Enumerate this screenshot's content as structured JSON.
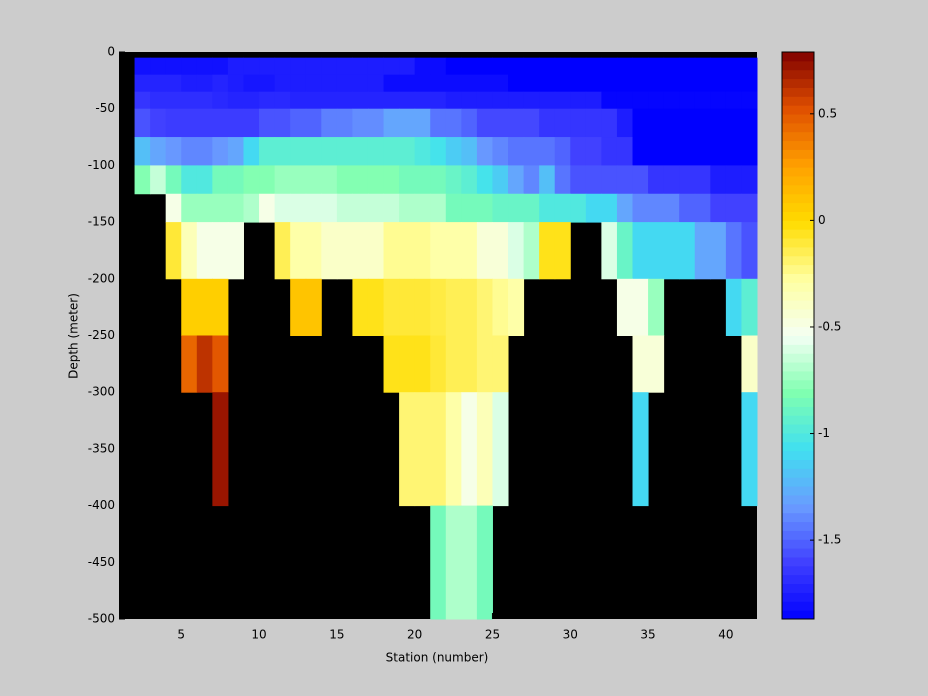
{
  "chart_data": {
    "type": "heatmap",
    "x_label": "Station (number)",
    "y_label": "Depth (meter)",
    "xlim": [
      1,
      42
    ],
    "ylim": [
      -500,
      0
    ],
    "xticks": [
      5,
      10,
      15,
      20,
      25,
      30,
      35,
      40
    ],
    "yticks": [
      0,
      -50,
      -100,
      -150,
      -200,
      -250,
      -300,
      -350,
      -400,
      -450,
      -500
    ],
    "clim": [
      -1.87,
      0.79
    ],
    "colorbar_ticks": [
      0.5,
      0,
      -0.5,
      -1,
      -1.5
    ],
    "colormap": [
      "#0000ff",
      "#4040ff",
      "#6a9cff",
      "#40e0f0",
      "#80ffb0",
      "#f4fff4",
      "#ffffa0",
      "#ffdc00",
      "#ffa000",
      "#e05000",
      "#800000"
    ],
    "missing_color": "#000000",
    "x_edges": [
      2,
      3,
      4,
      5,
      6,
      7,
      8,
      9,
      10,
      11,
      12,
      13,
      14,
      15,
      16,
      17,
      18,
      19,
      20,
      21,
      22,
      23,
      24,
      25,
      26,
      27,
      28,
      29,
      30,
      31,
      32,
      33,
      34,
      35,
      36,
      37,
      38,
      39,
      40,
      41,
      42
    ],
    "y_edges": [
      -5,
      -20,
      -35,
      -50,
      -75,
      -100,
      -125,
      -150,
      -200,
      -250,
      -300,
      -400,
      -500
    ],
    "values": [
      [
        -1.8,
        -1.8,
        -1.8,
        -1.8,
        -1.8,
        -1.8,
        -1.75,
        -1.75,
        -1.75,
        -1.75,
        -1.75,
        -1.75,
        -1.75,
        -1.75,
        -1.75,
        -1.75,
        -1.75,
        -1.75,
        -1.82,
        -1.82,
        -1.87,
        -1.87,
        -1.87,
        -1.87,
        -1.87,
        -1.87,
        -1.87,
        -1.87,
        -1.87,
        -1.87,
        -1.87,
        -1.87,
        -1.87,
        -1.87,
        -1.87,
        -1.87,
        -1.87,
        -1.87,
        -1.87,
        -1.87
      ],
      [
        -1.72,
        -1.72,
        -1.72,
        -1.75,
        -1.75,
        -1.72,
        -1.75,
        -1.78,
        -1.78,
        -1.75,
        -1.75,
        -1.75,
        -1.75,
        -1.75,
        -1.75,
        -1.75,
        -1.82,
        -1.82,
        -1.82,
        -1.82,
        -1.82,
        -1.82,
        -1.82,
        -1.82,
        -1.87,
        -1.87,
        -1.87,
        -1.87,
        -1.87,
        -1.87,
        -1.87,
        -1.87,
        -1.87,
        -1.87,
        -1.87,
        -1.87,
        -1.87,
        -1.87,
        -1.87,
        -1.87
      ],
      [
        -1.65,
        -1.68,
        -1.68,
        -1.68,
        -1.68,
        -1.7,
        -1.72,
        -1.72,
        -1.7,
        -1.7,
        -1.72,
        -1.72,
        -1.72,
        -1.72,
        -1.72,
        -1.72,
        -1.72,
        -1.72,
        -1.72,
        -1.72,
        -1.75,
        -1.75,
        -1.75,
        -1.75,
        -1.75,
        -1.75,
        -1.75,
        -1.75,
        -1.75,
        -1.75,
        -1.85,
        -1.85,
        -1.85,
        -1.85,
        -1.85,
        -1.85,
        -1.85,
        -1.85,
        -1.85,
        -1.85
      ],
      [
        -1.55,
        -1.6,
        -1.62,
        -1.62,
        -1.62,
        -1.62,
        -1.62,
        -1.62,
        -1.55,
        -1.55,
        -1.5,
        -1.5,
        -1.42,
        -1.42,
        -1.38,
        -1.38,
        -1.3,
        -1.3,
        -1.3,
        -1.45,
        -1.45,
        -1.5,
        -1.58,
        -1.58,
        -1.58,
        -1.58,
        -1.65,
        -1.65,
        -1.65,
        -1.65,
        -1.65,
        -1.75,
        -1.87,
        -1.87,
        -1.87,
        -1.87,
        -1.87,
        -1.87,
        -1.87,
        -1.87
      ],
      [
        -1.2,
        -1.3,
        -1.35,
        -1.4,
        -1.4,
        -1.35,
        -1.3,
        -1.1,
        -0.95,
        -0.95,
        -0.95,
        -0.95,
        -0.95,
        -0.95,
        -0.95,
        -0.95,
        -0.95,
        -0.95,
        -1.0,
        -1.05,
        -1.15,
        -1.2,
        -1.35,
        -1.4,
        -1.45,
        -1.45,
        -1.45,
        -1.5,
        -1.6,
        -1.6,
        -1.65,
        -1.65,
        -1.87,
        -1.87,
        -1.87,
        -1.87,
        -1.87,
        -1.87,
        -1.87,
        -1.87
      ],
      [
        -0.8,
        -0.65,
        -0.85,
        -1.0,
        -1.0,
        -0.85,
        -0.85,
        -0.8,
        -0.8,
        -0.75,
        -0.75,
        -0.75,
        -0.75,
        -0.8,
        -0.8,
        -0.8,
        -0.8,
        -0.85,
        -0.85,
        -0.85,
        -0.9,
        -0.95,
        -1.05,
        -1.15,
        -1.3,
        -1.4,
        -1.2,
        -1.45,
        -1.55,
        -1.55,
        -1.55,
        -1.55,
        -1.55,
        -1.65,
        -1.65,
        -1.65,
        -1.65,
        -1.75,
        -1.75,
        -1.75
      ],
      [
        null,
        null,
        -0.5,
        -0.75,
        -0.75,
        -0.75,
        -0.75,
        -0.7,
        -0.5,
        -0.6,
        -0.6,
        -0.6,
        -0.6,
        -0.65,
        -0.65,
        -0.65,
        -0.65,
        -0.7,
        -0.7,
        -0.7,
        -0.85,
        -0.85,
        -0.85,
        -0.9,
        -0.9,
        -0.9,
        -1.0,
        -1.0,
        -1.0,
        -1.1,
        -1.1,
        -1.3,
        -1.4,
        -1.4,
        -1.4,
        -1.5,
        -1.5,
        -1.6,
        -1.6,
        -1.6
      ],
      [
        null,
        null,
        -0.1,
        -0.35,
        -0.5,
        -0.5,
        -0.5,
        null,
        null,
        -0.15,
        -0.3,
        -0.3,
        -0.4,
        -0.4,
        -0.4,
        -0.4,
        -0.25,
        -0.25,
        -0.25,
        -0.3,
        -0.3,
        -0.3,
        -0.45,
        -0.45,
        -0.6,
        -0.7,
        -0.05,
        -0.05,
        null,
        null,
        -0.6,
        -0.9,
        -1.1,
        -1.1,
        -1.1,
        -1.1,
        -1.3,
        -1.3,
        -1.45,
        -1.55
      ],
      [
        null,
        null,
        null,
        0.05,
        0.05,
        0.05,
        null,
        null,
        null,
        null,
        0.1,
        0.1,
        null,
        null,
        -0.05,
        -0.05,
        -0.1,
        -0.1,
        -0.1,
        -0.12,
        -0.15,
        -0.15,
        -0.2,
        -0.25,
        -0.3,
        null,
        null,
        null,
        null,
        null,
        null,
        -0.5,
        -0.5,
        -0.75,
        null,
        null,
        null,
        null,
        -1.1,
        -0.95
      ],
      [
        null,
        null,
        null,
        0.45,
        0.62,
        0.5,
        null,
        null,
        null,
        null,
        null,
        null,
        null,
        null,
        null,
        null,
        -0.05,
        -0.05,
        -0.05,
        -0.1,
        -0.15,
        -0.15,
        -0.2,
        -0.2,
        null,
        null,
        null,
        null,
        null,
        null,
        null,
        null,
        -0.45,
        -0.45,
        null,
        null,
        null,
        null,
        null,
        -0.4
      ],
      [
        null,
        null,
        null,
        null,
        null,
        0.72,
        null,
        null,
        null,
        null,
        null,
        null,
        null,
        null,
        null,
        null,
        null,
        -0.2,
        -0.2,
        -0.2,
        -0.3,
        -0.5,
        -0.35,
        -0.6,
        null,
        null,
        null,
        null,
        null,
        null,
        null,
        null,
        -1.1,
        null,
        null,
        null,
        null,
        null,
        null,
        -1.1
      ],
      [
        null,
        null,
        null,
        null,
        null,
        null,
        null,
        null,
        null,
        null,
        null,
        null,
        null,
        null,
        null,
        null,
        null,
        null,
        null,
        -0.85,
        -0.7,
        -0.7,
        -0.85,
        null,
        null,
        null,
        null,
        null,
        null,
        null,
        null,
        null,
        null,
        null,
        null,
        null,
        null,
        null,
        null,
        null
      ]
    ]
  }
}
